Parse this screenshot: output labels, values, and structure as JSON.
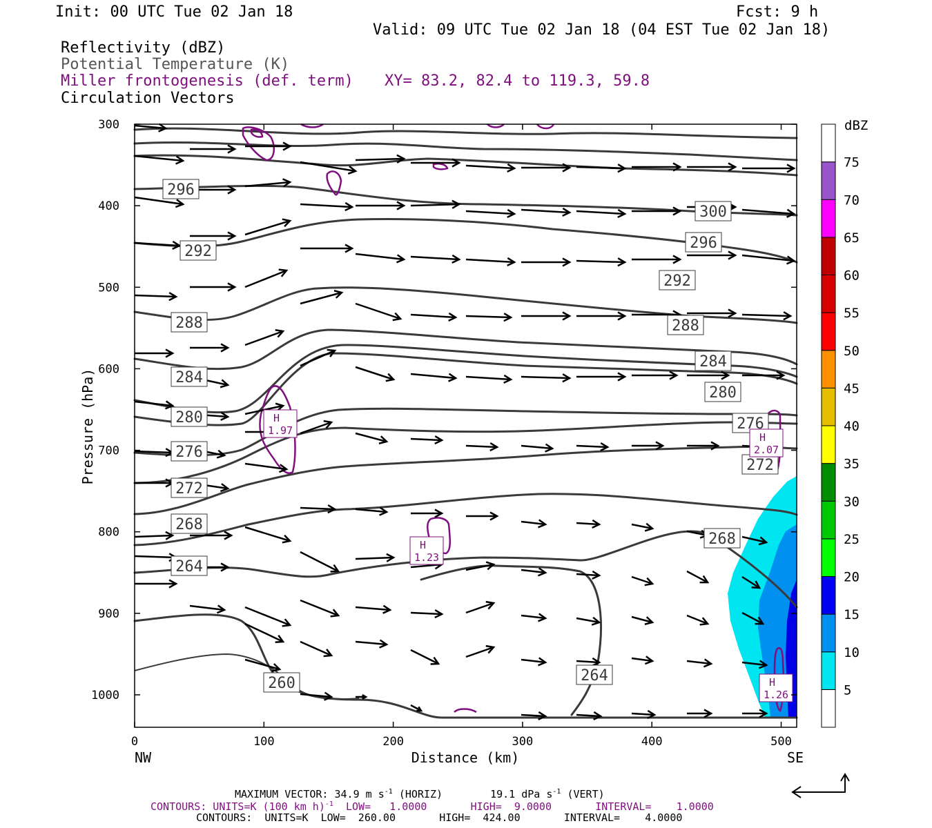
{
  "header": {
    "init": "Init: 00 UTC Tue 02 Jan 18",
    "fcst": "Fcst:   9 h",
    "valid": "Valid: 09 UTC Tue 02 Jan 18 (04 EST Tue 02 Jan 18)"
  },
  "legend": {
    "line1": "Reflectivity (dBZ)",
    "line2": "Potential Temperature (K)",
    "line3": "Miller frontogenesis (def. term)",
    "line4": "Circulation Vectors",
    "xy": "XY=  83.2, 82.4 to 119.3, 59.8"
  },
  "footer": {
    "max_vector_title": "MAXIMUM VECTOR:",
    "max_vector_horiz": "34.9 m s",
    "max_vector_horiz_tail": "(HORIZ)",
    "max_vector_vert": "19.1 dPa s",
    "max_vector_vert_tail": "(VERT)",
    "exp": "-1",
    "contours1": "CONTOURS:  UNITS=K (100 km h)",
    "contours1_tail": "  LOW=   1.0000       HIGH=  9.0000       INTERVAL=    1.0000",
    "contours2": "CONTOURS:  UNITS=K  LOW=  260.00       HIGH=  424.00       INTERVAL=    4.0000"
  },
  "chart_data": {
    "type": "cross-section",
    "xlabel": "Distance (km)",
    "ylabel": "Pressure (hPa)",
    "x_ticks": [
      0,
      100,
      200,
      300,
      400,
      500
    ],
    "y_ticks": [
      300,
      400,
      500,
      600,
      700,
      800,
      900,
      1000
    ],
    "xlim": [
      0,
      512
    ],
    "ylim": [
      1040,
      300
    ],
    "x_end_labels": {
      "left": "NW",
      "right": "SE"
    },
    "colorbar": {
      "title": "dBZ",
      "levels": [
        5,
        10,
        15,
        20,
        25,
        30,
        35,
        40,
        45,
        50,
        55,
        60,
        65,
        70,
        75
      ],
      "colors": [
        "#ffffff",
        "#00e6f0",
        "#0090f0",
        "#0000f0",
        "#00ff00",
        "#00c800",
        "#008c00",
        "#ffff00",
        "#e6be00",
        "#ff9000",
        "#ff0000",
        "#d60000",
        "#c00000",
        "#ff00ff",
        "#9955cc",
        "#ffffff"
      ]
    },
    "theta_labels": [
      "296",
      "292",
      "288",
      "284",
      "280",
      "276",
      "272",
      "268",
      "264",
      "260",
      "300",
      "296",
      "292",
      "288",
      "284",
      "280",
      "276",
      "272",
      "268",
      "264"
    ],
    "frontogenesis_maxima": [
      {
        "label": "H",
        "value": "1.97"
      },
      {
        "label": "H",
        "value": "1.23"
      },
      {
        "label": "H",
        "value": "2.07"
      },
      {
        "label": "H",
        "value": "1.26"
      }
    ]
  },
  "colors": {
    "theta": "#3a3a3a",
    "frontogenesis": "#7f0f7f",
    "vectors": "#000000"
  }
}
